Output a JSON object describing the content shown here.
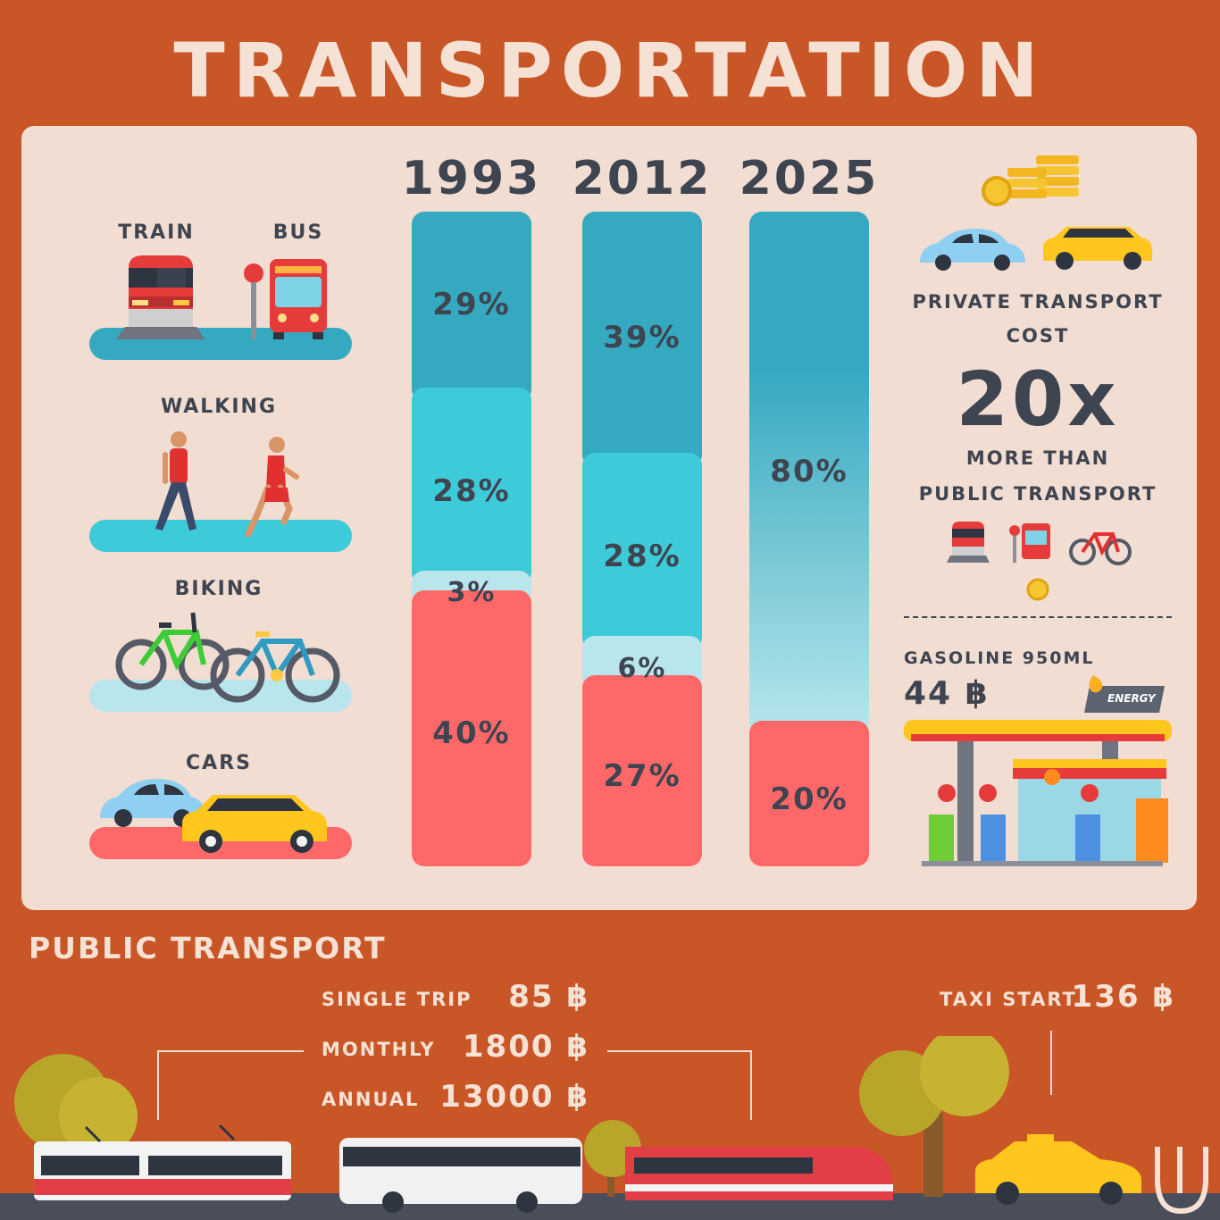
{
  "title": "TRANSPORTATION",
  "modes": {
    "train": "TRAIN",
    "bus": "BUS",
    "walking": "WALKING",
    "biking": "BIKING",
    "cars": "CARS"
  },
  "private_cost": {
    "label_line1": "PRIVATE TRANSPORT",
    "label_line2": "COST",
    "multiplier": "20x",
    "sub_line1": "MORE THAN",
    "sub_line2": "PUBLIC TRANSPORT"
  },
  "gasoline": {
    "label": "GASOLINE 950ML",
    "price": "44 ฿",
    "sign": "ENERGY"
  },
  "public_transport": {
    "heading": "PUBLIC TRANSPORT",
    "single_label": "SINGLE TRIP",
    "single_value": "85 ฿",
    "monthly_label": "MONTHLY",
    "monthly_value": "1800 ฿",
    "annual_label": "ANNUAL",
    "annual_value": "13000 ฿",
    "taxi_label": "TAXI START",
    "taxi_value": "136 ฿"
  },
  "colors": {
    "public": "#35A9C0",
    "walking": "#3ECBD9",
    "biking": "#B9E6EC",
    "cars": "#FF6868",
    "background": "#C95627",
    "panel": "#F1DDD2"
  },
  "chart_data": {
    "type": "bar",
    "stacked": true,
    "categories": [
      "1993",
      "2012",
      "2025"
    ],
    "series": [
      {
        "name": "TRAIN / BUS",
        "values": [
          29,
          39,
          null
        ],
        "labels": [
          "29%",
          "39%",
          ""
        ]
      },
      {
        "name": "WALKING",
        "values": [
          28,
          28,
          null
        ],
        "labels": [
          "28%",
          "28%",
          ""
        ]
      },
      {
        "name": "BIKING",
        "values": [
          3,
          6,
          null
        ],
        "labels": [
          "3%",
          "6%",
          ""
        ]
      },
      {
        "name": "CARS",
        "values": [
          40,
          27,
          20
        ],
        "labels": [
          "40%",
          "27%",
          "20%"
        ]
      }
    ],
    "combined_non_car_2025": {
      "value": 80,
      "label": "80%"
    }
  }
}
